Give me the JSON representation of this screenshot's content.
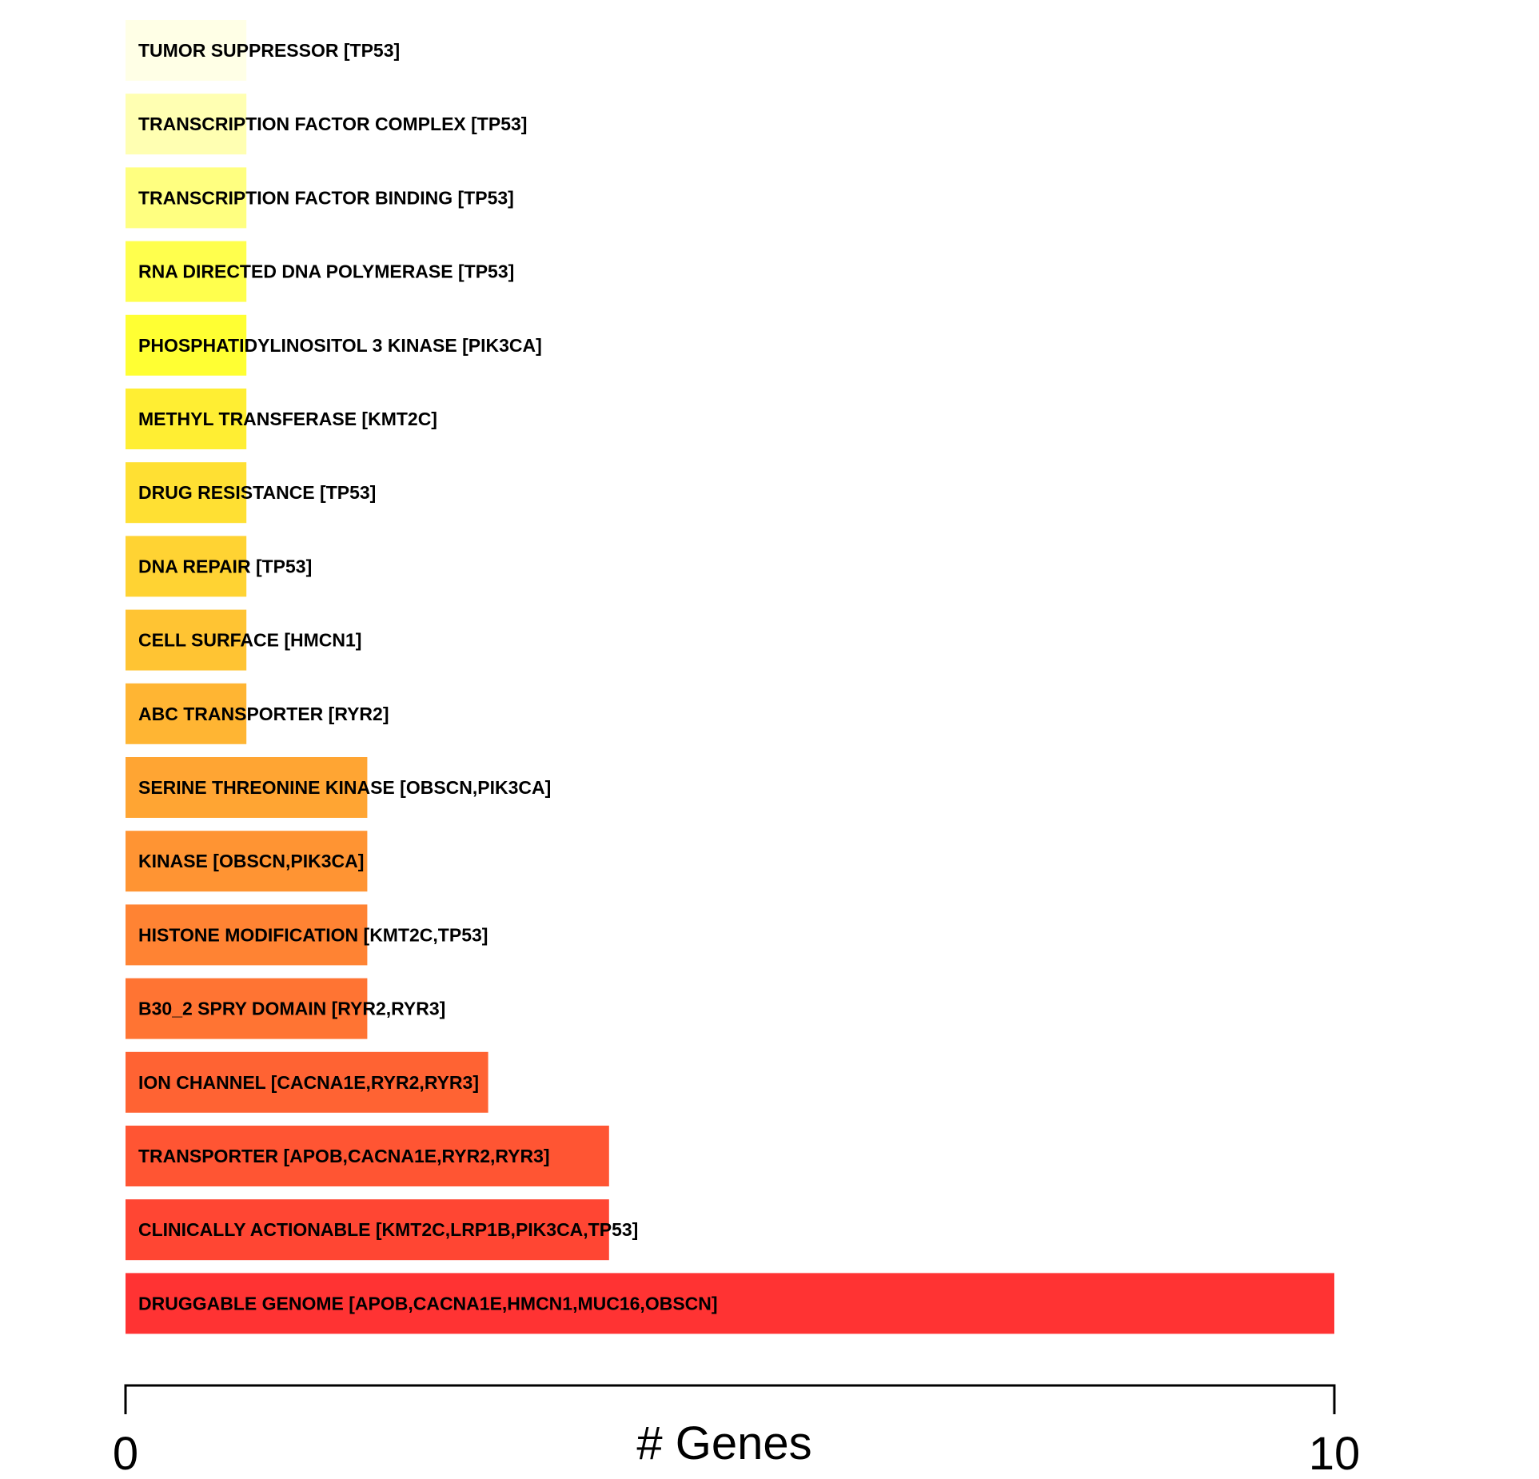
{
  "chart_data": {
    "type": "bar",
    "orientation": "horizontal",
    "title": "",
    "xlabel": "# Genes",
    "ylabel": "",
    "xlim": [
      0,
      10
    ],
    "x_ticks": [
      0,
      10
    ],
    "grid": false,
    "categories": [
      "TUMOR SUPPRESSOR [TP53]",
      "TRANSCRIPTION FACTOR COMPLEX [TP53]",
      "TRANSCRIPTION FACTOR BINDING [TP53]",
      "RNA DIRECTED DNA POLYMERASE [TP53]",
      "PHOSPHATIDYLINOSITOL 3 KINASE [PIK3CA]",
      "METHYL TRANSFERASE [KMT2C]",
      "DRUG RESISTANCE [TP53]",
      "DNA REPAIR [TP53]",
      "CELL SURFACE [HMCN1]",
      "ABC TRANSPORTER [RYR2]",
      "SERINE THREONINE KINASE [OBSCN,PIK3CA]",
      "KINASE [OBSCN,PIK3CA]",
      "HISTONE MODIFICATION [KMT2C,TP53]",
      "B30_2 SPRY DOMAIN [RYR2,RYR3]",
      "ION CHANNEL [CACNA1E,RYR2,RYR3]",
      "TRANSPORTER [APOB,CACNA1E,RYR2,RYR3]",
      "CLINICALLY ACTIONABLE [KMT2C,LRP1B,PIK3CA,TP53]",
      "DRUGGABLE GENOME [APOB,CACNA1E,HMCN1,MUC16,OBSCN]"
    ],
    "values": [
      1,
      1,
      1,
      1,
      1,
      1,
      1,
      1,
      1,
      1,
      2,
      2,
      2,
      2,
      3,
      4,
      4,
      10
    ],
    "colors": [
      "#FFFFE6",
      "#FFFFB2",
      "#FFFF80",
      "#FFFF4D",
      "#FFFF33",
      "#FFEE33",
      "#FFE033",
      "#FFD333",
      "#FFC433",
      "#FFB533",
      "#FFA533",
      "#FF9433",
      "#FF8333",
      "#FF7433",
      "#FF6333",
      "#FF5533",
      "#FF4633",
      "#FF3333"
    ]
  }
}
